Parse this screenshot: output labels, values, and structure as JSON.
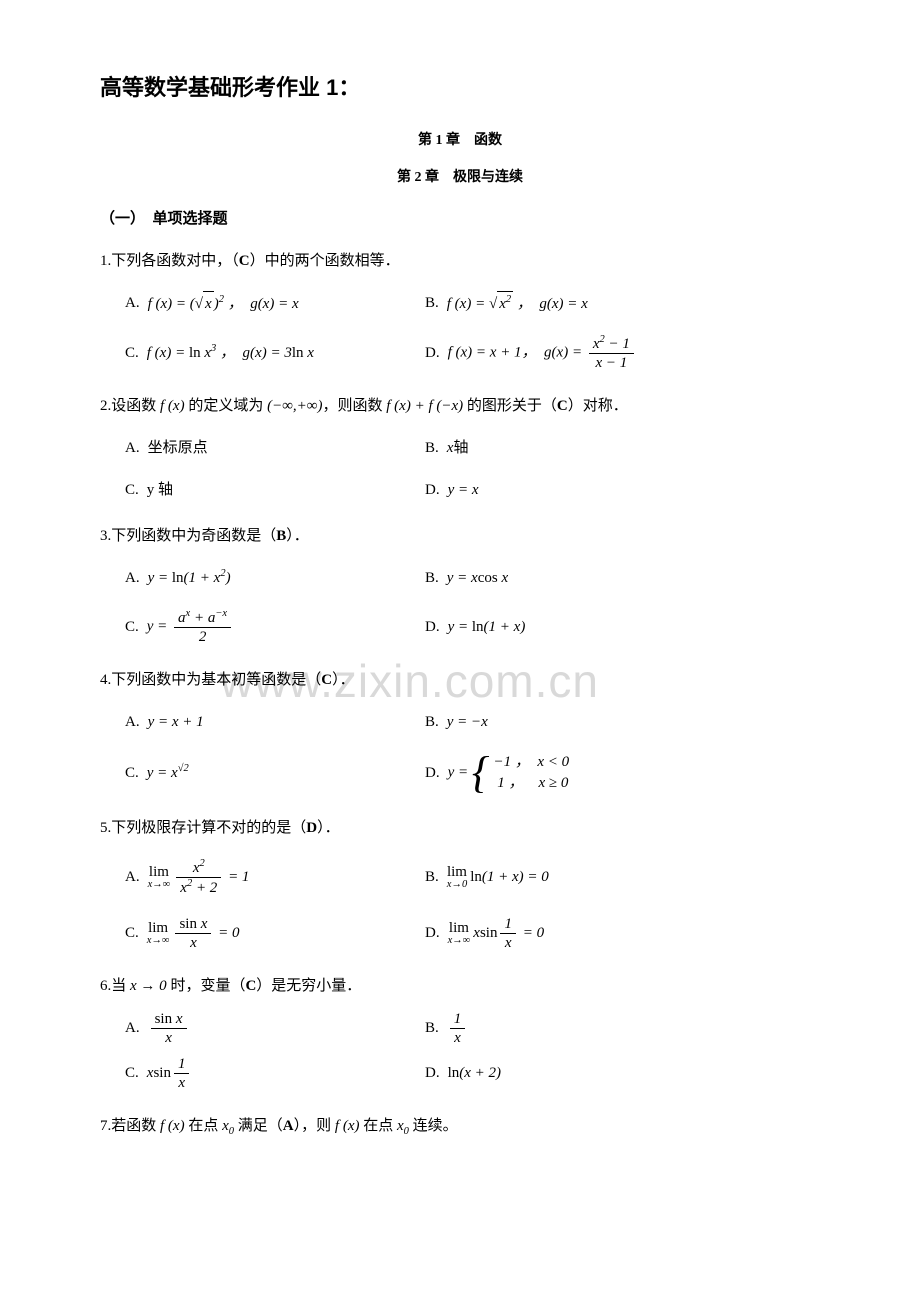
{
  "title": "高等数学基础形考作业 1：",
  "chapter1": "第 1 章　函数",
  "chapter2": "第 2 章　极限与连续",
  "section1": "（一）　单项选择题",
  "q1": {
    "stem_pre": "1.下列各函数对中，（",
    "ans": "C",
    "stem_post": "）中的两个函数相等．",
    "A_lbl": "A.",
    "B_lbl": "B.",
    "C_lbl": "C.",
    "D_lbl": "D."
  },
  "q2": {
    "stem_pre": "2.设函数 ",
    "stem_mid1": " 的定义域为 ",
    "stem_mid2": "，则函数 ",
    "stem_mid3": " 的图形关于（",
    "ans": "C",
    "stem_post": "）对称．",
    "A_lbl": "A.",
    "A": "坐标原点",
    "B_lbl": "B.",
    "C_lbl": "C.",
    "C": "y 轴",
    "D_lbl": "D."
  },
  "q3": {
    "stem_pre": "3.下列函数中为奇函数是（",
    "ans": "B",
    "stem_post": "）．",
    "A_lbl": "A.",
    "B_lbl": "B.",
    "C_lbl": "C.",
    "D_lbl": "D."
  },
  "q4": {
    "stem_pre": "4.下列函数中为基本初等函数是（",
    "ans": "C",
    "stem_post": "）．",
    "A_lbl": "A.",
    "B_lbl": "B.",
    "C_lbl": "C.",
    "D_lbl": "D."
  },
  "q5": {
    "stem_pre": "5.下列极限存计算不对的的是（",
    "ans": "D",
    "stem_post": "）．",
    "A_lbl": "A.",
    "B_lbl": "B.",
    "C_lbl": "C.",
    "D_lbl": "D."
  },
  "q6": {
    "stem_pre": "6.当 ",
    "stem_mid": " 时，变量（",
    "ans": "C",
    "stem_post": "）是无穷小量．",
    "A_lbl": "A.",
    "B_lbl": "B.",
    "C_lbl": "C.",
    "D_lbl": "D."
  },
  "q7": {
    "stem_pre": "7.若函数 ",
    "stem_mid1": " 在点 ",
    "stem_mid2": " 满足（",
    "ans": "A",
    "stem_mid3": "），则 ",
    "stem_mid4": " 在点 ",
    "stem_post": " 连续。"
  },
  "watermark": "www.zixin.com.cn",
  "colors": {
    "text": "#000000",
    "bg": "#ffffff",
    "watermark": "#d9d9d9"
  }
}
